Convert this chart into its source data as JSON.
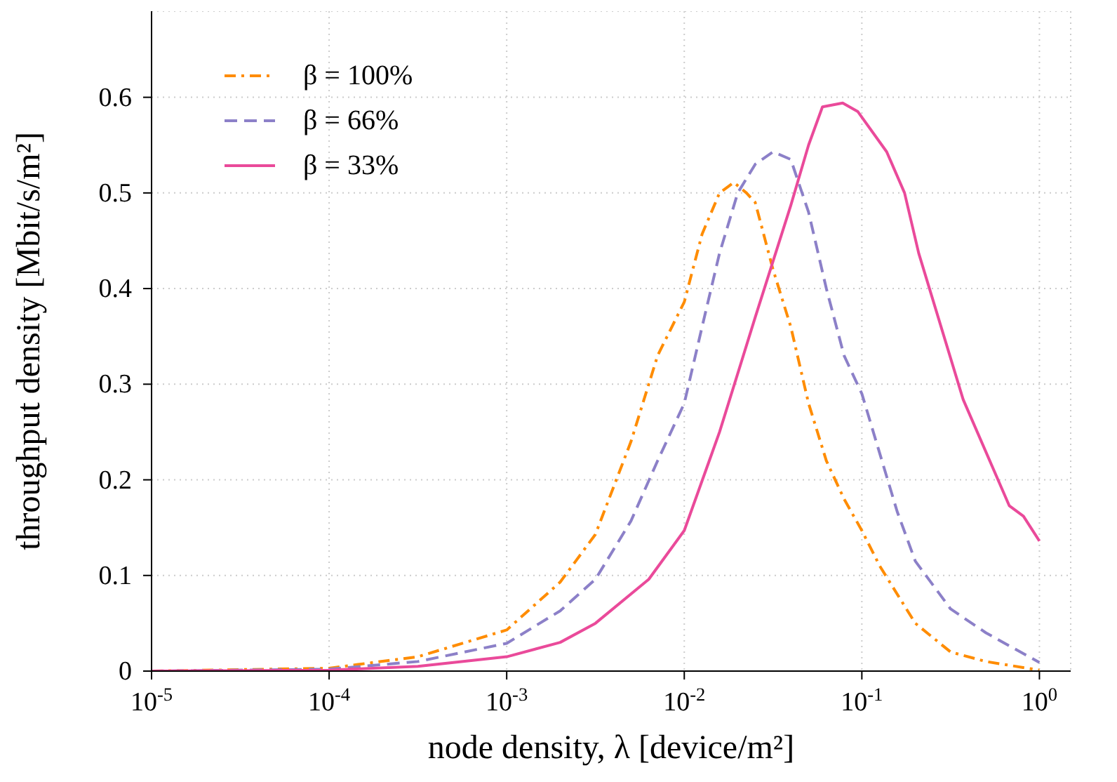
{
  "chart_data": {
    "type": "line",
    "xlabel": "node density, λ [device/m²]",
    "ylabel": "throughput density [Mbit/s/m²]",
    "log": "x",
    "xlim": [
      1e-05,
      1.5
    ],
    "xticks": [
      {
        "value": 1e-05,
        "label": "10$^{-5}$"
      },
      {
        "value": 0.0001,
        "label": "10$^{-4}$"
      },
      {
        "value": 0.001,
        "label": "10$^{-3}$"
      },
      {
        "value": 0.01,
        "label": "10$^{-2}$"
      },
      {
        "value": 0.1,
        "label": "10$^{-1}$"
      },
      {
        "value": 1,
        "label": "10$^{0}$"
      }
    ],
    "ylim": [
      0,
      0.69
    ],
    "yticks": [
      0,
      0.1,
      0.2,
      0.3,
      0.4,
      0.5,
      0.6
    ],
    "grid": true,
    "legend": "top left",
    "marker": "none",
    "series": [
      {
        "name": "β = 100%",
        "color": "#ff8c00",
        "line_style": "dashdot",
        "x": [
          1e-05,
          0.0001,
          0.000316,
          0.001,
          0.002,
          0.00316,
          0.00501,
          0.00708,
          0.01,
          0.0126,
          0.0158,
          0.019,
          0.0224,
          0.0251,
          0.0316,
          0.0398,
          0.0501,
          0.0631,
          0.0794,
          0.1,
          0.126,
          0.2,
          0.316,
          0.5,
          1
        ],
        "values": [
          0,
          0.003,
          0.015,
          0.043,
          0.093,
          0.143,
          0.24,
          0.33,
          0.386,
          0.457,
          0.5,
          0.511,
          0.5,
          0.49,
          0.42,
          0.36,
          0.28,
          0.22,
          0.18,
          0.147,
          0.11,
          0.05,
          0.02,
          0.01,
          0.001
        ]
      },
      {
        "name": "β = 66%",
        "color": "#8c80c8",
        "line_style": "dashed",
        "x": [
          1e-05,
          0.0001,
          0.000316,
          0.001,
          0.002,
          0.00316,
          0.00501,
          0.00708,
          0.01,
          0.0126,
          0.0158,
          0.02,
          0.0251,
          0.0316,
          0.0398,
          0.0501,
          0.0631,
          0.0794,
          0.1,
          0.158,
          0.2,
          0.316,
          0.5,
          1
        ],
        "values": [
          0,
          0.002,
          0.01,
          0.029,
          0.063,
          0.096,
          0.157,
          0.22,
          0.28,
          0.36,
          0.437,
          0.5,
          0.53,
          0.543,
          0.535,
          0.48,
          0.4,
          0.33,
          0.29,
          0.167,
          0.115,
          0.065,
          0.04,
          0.009
        ]
      },
      {
        "name": "β = 33%",
        "color": "#ea4a9a",
        "line_style": "solid",
        "x": [
          1e-05,
          0.0001,
          0.000316,
          0.001,
          0.002,
          0.00316,
          0.00631,
          0.01,
          0.0158,
          0.0251,
          0.0398,
          0.0501,
          0.06,
          0.078,
          0.095,
          0.138,
          0.174,
          0.209,
          0.372,
          0.676,
          0.813,
          1
        ],
        "values": [
          0,
          0.001,
          0.005,
          0.015,
          0.03,
          0.05,
          0.096,
          0.147,
          0.25,
          0.37,
          0.487,
          0.55,
          0.59,
          0.594,
          0.585,
          0.543,
          0.5,
          0.437,
          0.284,
          0.173,
          0.162,
          0.136
        ]
      }
    ]
  }
}
